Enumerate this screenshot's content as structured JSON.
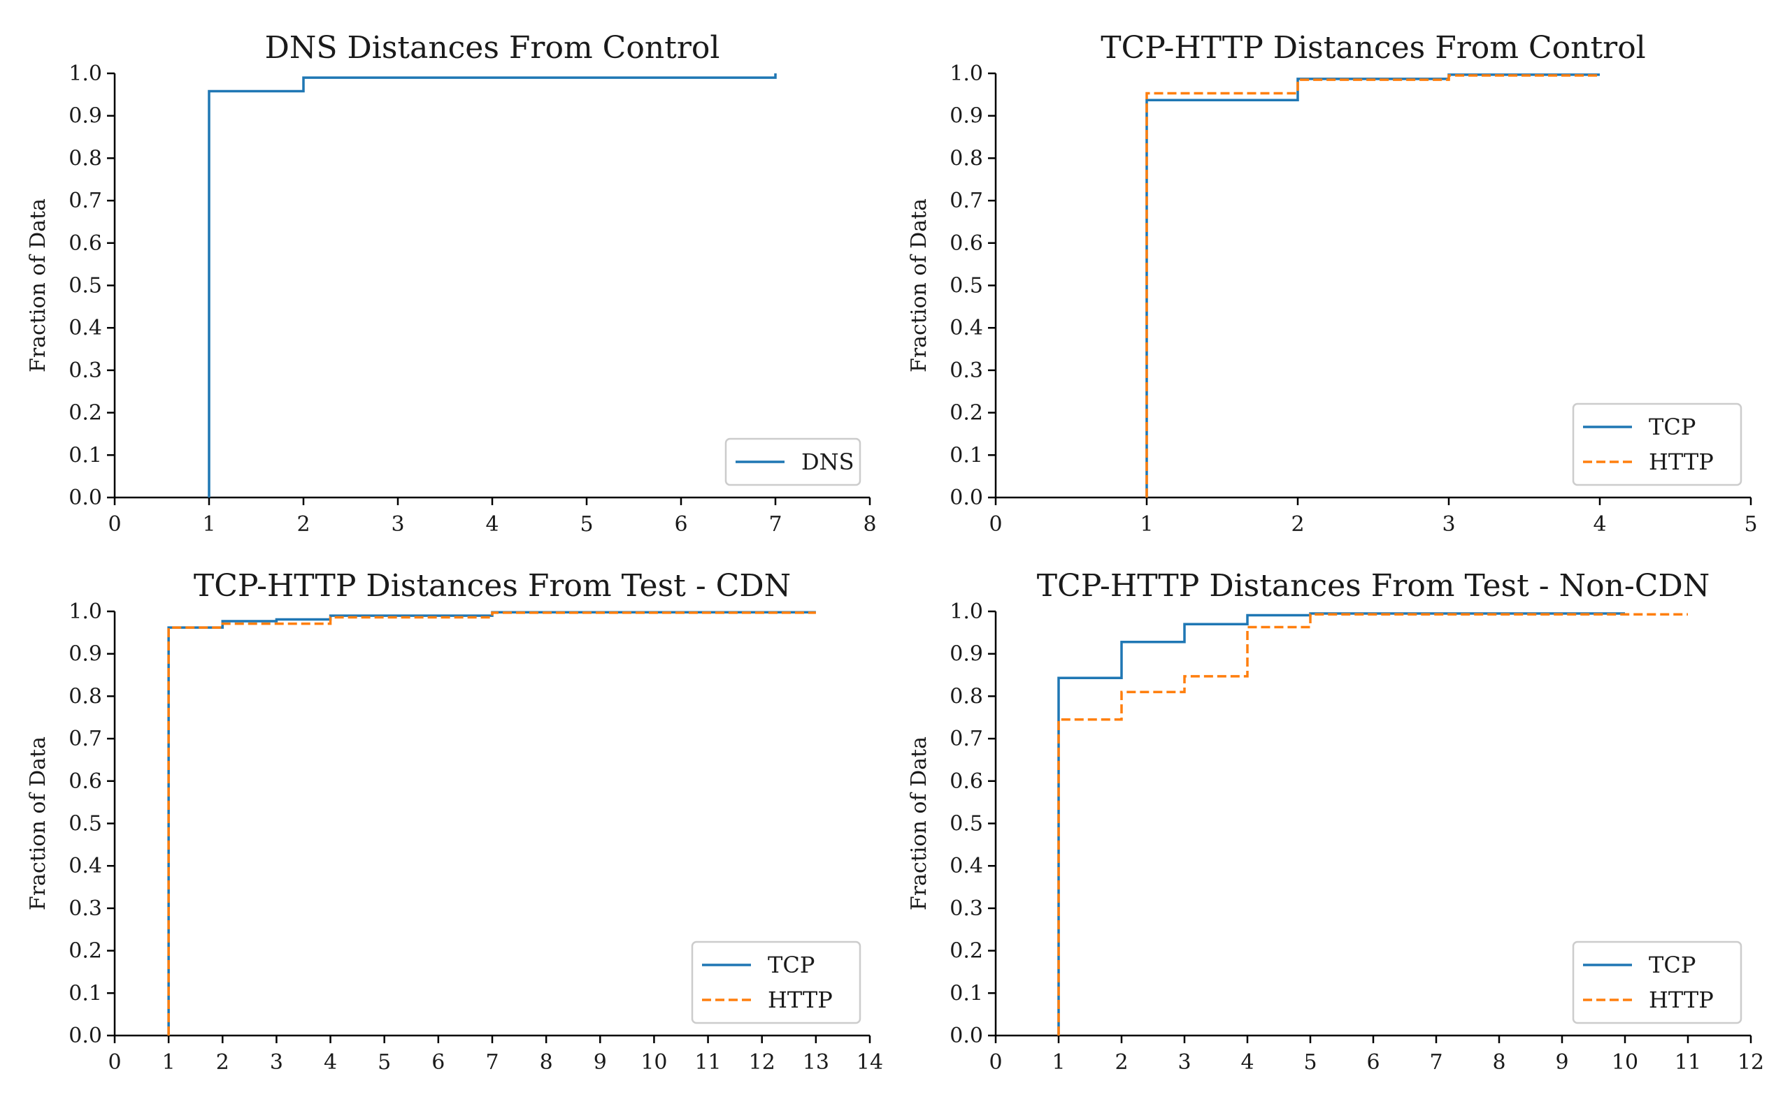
{
  "chart_data": [
    {
      "type": "line",
      "subtype": "step-cdf",
      "title": "DNS Distances From Control",
      "xlabel": "",
      "ylabel": "Fraction of Data",
      "xlim": [
        0,
        8
      ],
      "ylim": [
        0.0,
        1.0
      ],
      "xticks": [
        "0",
        "1",
        "2",
        "3",
        "4",
        "5",
        "6",
        "7",
        "8"
      ],
      "yticks": [
        "0.0",
        "0.1",
        "0.2",
        "0.3",
        "0.4",
        "0.5",
        "0.6",
        "0.7",
        "0.8",
        "0.9",
        "1.0"
      ],
      "grid": false,
      "legend": "lower-right",
      "series": [
        {
          "name": "DNS",
          "color": "#1f77b4",
          "dash": "solid",
          "x": [
            1,
            2,
            7
          ],
          "y": [
            0.958,
            0.99,
            1.0
          ]
        }
      ]
    },
    {
      "type": "line",
      "subtype": "step-cdf",
      "title": "TCP-HTTP Distances From Control",
      "xlabel": "",
      "ylabel": "Fraction of Data",
      "xlim": [
        0,
        5
      ],
      "ylim": [
        0.0,
        1.0
      ],
      "xticks": [
        "0",
        "1",
        "2",
        "3",
        "4",
        "5"
      ],
      "yticks": [
        "0.0",
        "0.1",
        "0.2",
        "0.3",
        "0.4",
        "0.5",
        "0.6",
        "0.7",
        "0.8",
        "0.9",
        "1.0"
      ],
      "grid": false,
      "legend": "lower-right",
      "series": [
        {
          "name": "TCP",
          "color": "#1f77b4",
          "dash": "solid",
          "x": [
            1,
            2,
            3,
            4
          ],
          "y": [
            0.937,
            0.987,
            0.997,
            0.997
          ]
        },
        {
          "name": "HTTP",
          "color": "#ff7f0e",
          "dash": "dashed",
          "x": [
            1,
            2,
            3,
            4
          ],
          "y": [
            0.953,
            0.985,
            0.995,
            0.995
          ]
        }
      ]
    },
    {
      "type": "line",
      "subtype": "step-cdf",
      "title": "TCP-HTTP Distances From Test - CDN",
      "xlabel": "",
      "ylabel": "Fraction of Data",
      "xlim": [
        0,
        14
      ],
      "ylim": [
        0.0,
        1.0
      ],
      "xticks": [
        "0",
        "1",
        "2",
        "3",
        "4",
        "5",
        "6",
        "7",
        "8",
        "9",
        "10",
        "11",
        "12",
        "13",
        "14"
      ],
      "yticks": [
        "0.0",
        "0.1",
        "0.2",
        "0.3",
        "0.4",
        "0.5",
        "0.6",
        "0.7",
        "0.8",
        "0.9",
        "1.0"
      ],
      "grid": false,
      "legend": "lower-right",
      "series": [
        {
          "name": "TCP",
          "color": "#1f77b4",
          "dash": "solid",
          "x": [
            1,
            2,
            3,
            4,
            7,
            13
          ],
          "y": [
            0.962,
            0.977,
            0.981,
            0.99,
            0.998,
            0.998
          ]
        },
        {
          "name": "HTTP",
          "color": "#ff7f0e",
          "dash": "dashed",
          "x": [
            1,
            2,
            4,
            7,
            13
          ],
          "y": [
            0.962,
            0.971,
            0.986,
            0.997,
            0.997
          ]
        }
      ]
    },
    {
      "type": "line",
      "subtype": "step-cdf",
      "title": "TCP-HTTP Distances From Test - Non-CDN",
      "xlabel": "",
      "ylabel": "Fraction of Data",
      "xlim": [
        0,
        12
      ],
      "ylim": [
        0.0,
        1.0
      ],
      "xticks": [
        "0",
        "1",
        "2",
        "3",
        "4",
        "5",
        "6",
        "7",
        "8",
        "9",
        "10",
        "11",
        "12"
      ],
      "yticks": [
        "0.0",
        "0.1",
        "0.2",
        "0.3",
        "0.4",
        "0.5",
        "0.6",
        "0.7",
        "0.8",
        "0.9",
        "1.0"
      ],
      "grid": false,
      "legend": "lower-right",
      "series": [
        {
          "name": "TCP",
          "color": "#1f77b4",
          "dash": "solid",
          "x": [
            1,
            2,
            3,
            4,
            5,
            10
          ],
          "y": [
            0.843,
            0.928,
            0.97,
            0.991,
            0.995,
            0.995
          ]
        },
        {
          "name": "HTTP",
          "color": "#ff7f0e",
          "dash": "dashed",
          "x": [
            1,
            2,
            3,
            4,
            5,
            11
          ],
          "y": [
            0.745,
            0.81,
            0.847,
            0.963,
            0.993,
            0.993
          ]
        }
      ]
    }
  ]
}
